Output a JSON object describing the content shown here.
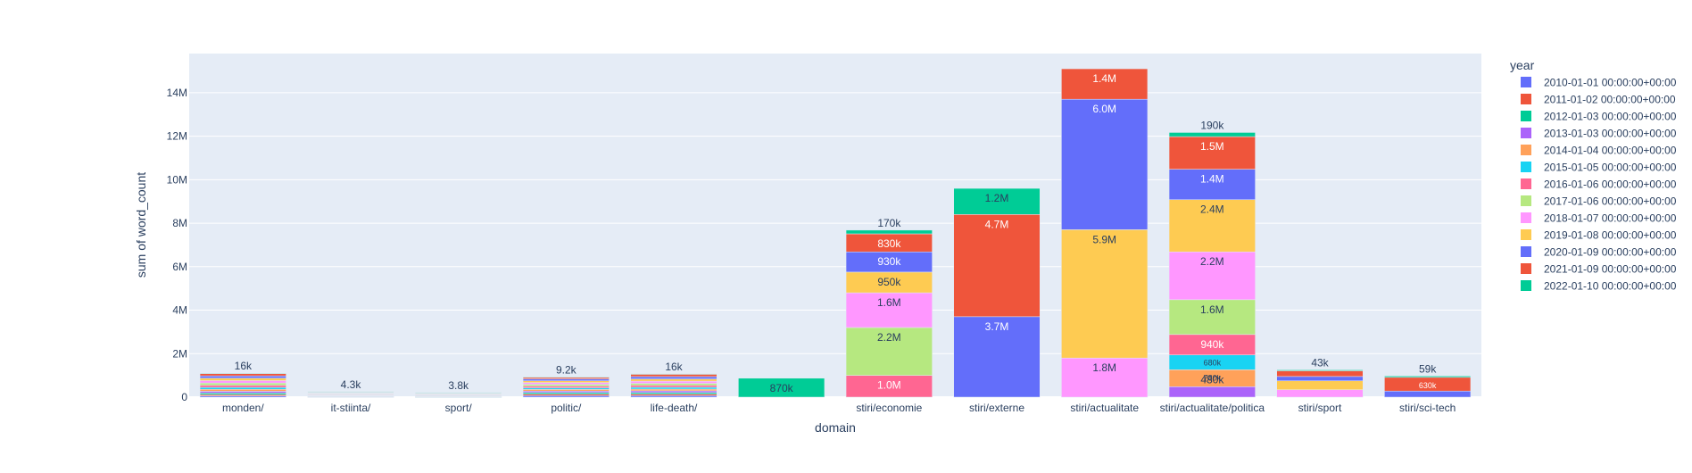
{
  "chart_data": {
    "type": "bar",
    "barmode": "stack",
    "xlabel": "domain",
    "ylabel": "sum of word_count",
    "ylim": [
      0,
      15800000
    ],
    "yticks": [
      0,
      2000000,
      4000000,
      6000000,
      8000000,
      10000000,
      12000000,
      14000000
    ],
    "ytick_labels": [
      "0",
      "2M",
      "4M",
      "6M",
      "8M",
      "10M",
      "12M",
      "14M"
    ],
    "grid": true,
    "legend_title": "year",
    "legend_position": "right",
    "categories": [
      "monden/",
      "it-stiinta/",
      "sport/",
      "politic/",
      "life-death/",
      "",
      "stiri/economie",
      "stiri/externe",
      "stiri/actualitate",
      "stiri/actualitate/politica",
      "stiri/sport",
      "stiri/sci-tech"
    ],
    "series": [
      {
        "name": "2010-01-01 00:00:00+00:00",
        "color": "#636efa",
        "values": [
          60000,
          12000,
          6000,
          70000,
          70000,
          null,
          null,
          null,
          null,
          null,
          null,
          null
        ],
        "labels": [
          "",
          "",
          "",
          "",
          "",
          "",
          "",
          "",
          "",
          "",
          "",
          ""
        ]
      },
      {
        "name": "2011-01-02 00:00:00+00:00",
        "color": "#EF553B",
        "values": [
          60000,
          12000,
          6000,
          70000,
          70000,
          null,
          null,
          null,
          null,
          null,
          null,
          null
        ],
        "labels": [
          "",
          "",
          "",
          "",
          "",
          "",
          "",
          "",
          "",
          "",
          "",
          ""
        ]
      },
      {
        "name": "2012-01-03 00:00:00+00:00",
        "color": "#00cc96",
        "values": [
          70000,
          15000,
          8000,
          70000,
          70000,
          870000,
          null,
          null,
          null,
          null,
          null,
          null
        ],
        "labels": [
          "",
          "",
          "",
          "",
          "",
          "870k",
          "",
          "",
          "",
          "",
          "",
          ""
        ]
      },
      {
        "name": "2013-01-03 00:00:00+00:00",
        "color": "#ab63fa",
        "values": [
          80000,
          18000,
          15000,
          70000,
          80000,
          null,
          null,
          null,
          null,
          480000,
          null,
          null
        ],
        "labels": [
          "",
          "",
          "",
          "",
          "",
          "",
          "",
          "",
          "",
          "480k",
          "",
          ""
        ]
      },
      {
        "name": "2014-01-04 00:00:00+00:00",
        "color": "#FFA15A",
        "values": [
          90000,
          20000,
          15000,
          75000,
          80000,
          null,
          null,
          null,
          null,
          780000,
          null,
          null
        ],
        "labels": [
          "",
          "",
          "",
          "",
          "",
          "",
          "",
          "",
          "",
          "780k",
          "",
          ""
        ]
      },
      {
        "name": "2015-01-05 00:00:00+00:00",
        "color": "#19d3f3",
        "values": [
          90000,
          20000,
          15000,
          75000,
          85000,
          null,
          null,
          null,
          null,
          680000,
          null,
          null
        ],
        "labels": [
          "",
          "",
          "",
          "",
          "",
          "",
          "",
          "",
          "",
          "680k",
          "",
          ""
        ]
      },
      {
        "name": "2016-01-06 00:00:00+00:00",
        "color": "#FF6692",
        "values": [
          100000,
          25000,
          20000,
          80000,
          90000,
          null,
          1000000,
          null,
          null,
          940000,
          null,
          null
        ],
        "labels": [
          "",
          "",
          "",
          "",
          "",
          "",
          "1.0M",
          "",
          "",
          "940k",
          "",
          ""
        ]
      },
      {
        "name": "2017-01-06 00:00:00+00:00",
        "color": "#B6E880",
        "values": [
          100000,
          25000,
          20000,
          80000,
          90000,
          null,
          2200000,
          null,
          null,
          1600000,
          null,
          null
        ],
        "labels": [
          "",
          "",
          "",
          "",
          "",
          "",
          "2.2M",
          "",
          "",
          "1.6M",
          "",
          ""
        ]
      },
      {
        "name": "2018-01-07 00:00:00+00:00",
        "color": "#FF97FF",
        "values": [
          110000,
          25000,
          25000,
          80000,
          100000,
          null,
          1600000,
          null,
          1800000,
          2200000,
          340000,
          null
        ],
        "labels": [
          "",
          "",
          "",
          "",
          "",
          "",
          "1.6M",
          "",
          "1.8M",
          "2.2M",
          "",
          ""
        ]
      },
      {
        "name": "2019-01-08 00:00:00+00:00",
        "color": "#FECB52",
        "values": [
          110000,
          25000,
          25000,
          80000,
          100000,
          null,
          950000,
          null,
          5900000,
          2400000,
          410000,
          null
        ],
        "labels": [
          "",
          "",
          "",
          "",
          "",
          "",
          "950k",
          "",
          "5.9M",
          "2.4M",
          "",
          ""
        ]
      },
      {
        "name": "2020-01-09 00:00:00+00:00",
        "color": "#636efa",
        "values": [
          110000,
          25000,
          25000,
          90000,
          110000,
          null,
          930000,
          3700000,
          6000000,
          1400000,
          200000,
          280000
        ],
        "labels": [
          "",
          "",
          "",
          "",
          "",
          "",
          "930k",
          "3.7M",
          "6.0M",
          "1.4M",
          "",
          ""
        ]
      },
      {
        "name": "2021-01-09 00:00:00+00:00",
        "color": "#EF553B",
        "values": [
          110000,
          25000,
          25000,
          80000,
          110000,
          null,
          830000,
          4700000,
          1400000,
          1500000,
          260000,
          630000
        ],
        "labels": [
          "",
          "",
          "",
          "",
          "",
          "",
          "830k",
          "4.7M",
          "1.4M",
          "1.5M",
          "",
          "630k"
        ]
      },
      {
        "name": "2022-01-10 00:00:00+00:00",
        "color": "#00cc96",
        "values": [
          16000,
          4300,
          3800,
          9200,
          16000,
          null,
          170000,
          1200000,
          null,
          190000,
          43000,
          59000
        ],
        "labels": [
          "16k",
          "4.3k",
          "3.8k",
          "9.2k",
          "16k",
          "",
          "170k",
          "1.2M",
          "",
          "190k",
          "43k",
          "59k"
        ]
      }
    ]
  }
}
